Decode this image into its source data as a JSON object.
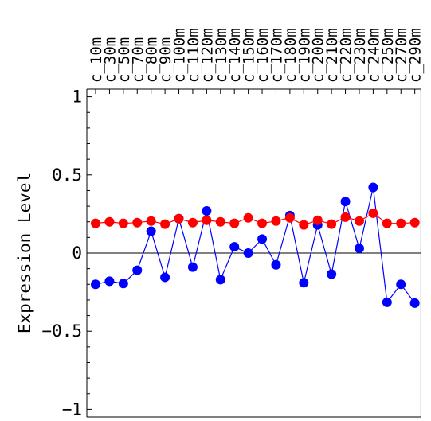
{
  "chart_data": {
    "type": "line",
    "title": "",
    "xlabel": "",
    "ylabel": "Expression Level",
    "ylim": [
      -1.03,
      1.03
    ],
    "yticks": [
      -1,
      -0.5,
      0,
      0.5,
      1
    ],
    "ytick_labels": [
      "−1",
      "−0.5",
      "0",
      "0.5",
      "1"
    ],
    "categories": [
      "c_10m",
      "c_30m",
      "c_50m",
      "c_70m",
      "c_80m",
      "c_90m",
      "c_100m",
      "c_110m",
      "c_120m",
      "c_130m",
      "c_140m",
      "c_150m",
      "c_160m",
      "c_170m",
      "c_180m",
      "c_190m",
      "c_200m",
      "c_210m",
      "c_220m",
      "c_230m",
      "c_240m",
      "c_250m",
      "c_270m",
      "c_290m"
    ],
    "series": [
      {
        "color": "#0000ff",
        "values": [
          -0.2,
          -0.18,
          -0.195,
          -0.11,
          0.14,
          -0.155,
          0.22,
          -0.09,
          0.27,
          -0.17,
          0.04,
          0.0,
          0.09,
          -0.075,
          0.24,
          -0.19,
          0.18,
          -0.135,
          0.33,
          0.03,
          0.42,
          -0.315,
          -0.2,
          -0.32
        ]
      },
      {
        "color": "#ff0000",
        "values": [
          0.19,
          0.2,
          0.19,
          0.195,
          0.205,
          0.185,
          0.22,
          0.195,
          0.21,
          0.2,
          0.19,
          0.225,
          0.19,
          0.205,
          0.225,
          0.18,
          0.21,
          0.185,
          0.23,
          0.205,
          0.255,
          0.19,
          0.19,
          0.195
        ]
      }
    ]
  }
}
